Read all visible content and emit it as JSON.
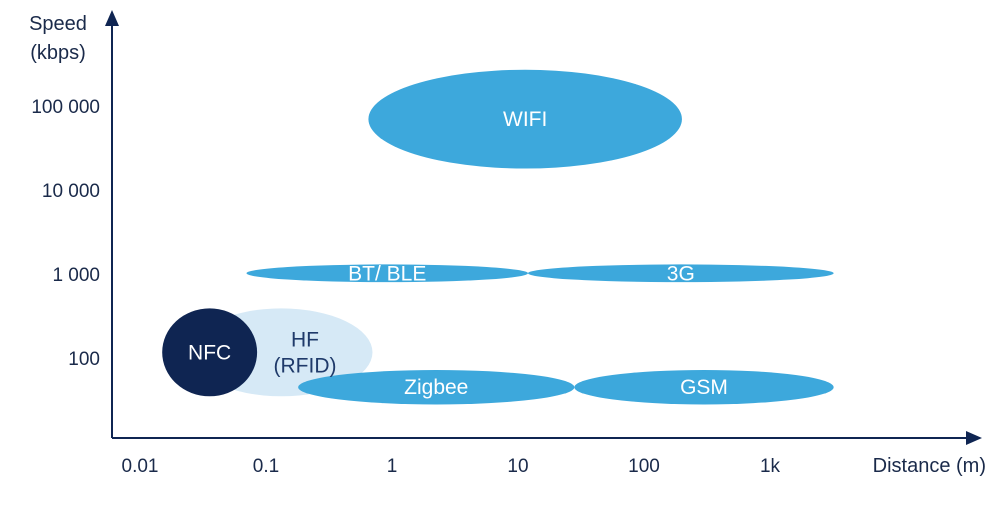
{
  "chart_data": {
    "type": "bubble-region",
    "title": "",
    "xlabel": "Distance (m)",
    "ylabel": [
      "Speed",
      "(kbps)"
    ],
    "x_scale": "log",
    "y_scale": "log",
    "x_ticks": [
      "0.01",
      "0.1",
      "1",
      "10",
      "100",
      "1k"
    ],
    "y_ticks": [
      "100 000",
      "10 000",
      "1 000",
      "100"
    ],
    "x_tick_values": [
      0.01,
      0.1,
      1,
      10,
      100,
      1000
    ],
    "y_tick_values": [
      100000,
      10000,
      1000,
      100
    ],
    "regions": [
      {
        "label": [
          "HF",
          "(RFID)"
        ],
        "x_range": [
          0.025,
          0.7
        ],
        "y_range": [
          35,
          390
        ],
        "color": "#d6e9f6",
        "label_style": "dark"
      },
      {
        "label": [
          "WIFI"
        ],
        "x_range": [
          0.65,
          200
        ],
        "y_range": [
          18000,
          270000
        ],
        "color": "#3da8dc"
      },
      {
        "label": [
          "BT/ BLE"
        ],
        "x_range": [
          0.07,
          12
        ],
        "y_range": [
          800,
          1300
        ],
        "color": "#3da8dc"
      },
      {
        "label": [
          "3G"
        ],
        "x_range": [
          12,
          3200
        ],
        "y_range": [
          800,
          1300
        ],
        "color": "#3da8dc"
      },
      {
        "label": [
          "Zigbee"
        ],
        "x_range": [
          0.18,
          28
        ],
        "y_range": [
          28,
          72
        ],
        "color": "#3da8dc"
      },
      {
        "label": [
          "GSM"
        ],
        "x_range": [
          28,
          3200
        ],
        "y_range": [
          28,
          72
        ],
        "color": "#3da8dc"
      },
      {
        "label": [
          "NFC"
        ],
        "x_range": [
          0.015,
          0.085
        ],
        "y_range": [
          35,
          390
        ],
        "color": "#0f2552"
      }
    ]
  },
  "colors": {
    "axis": "#0f2552",
    "text": "#1a2a4a"
  }
}
